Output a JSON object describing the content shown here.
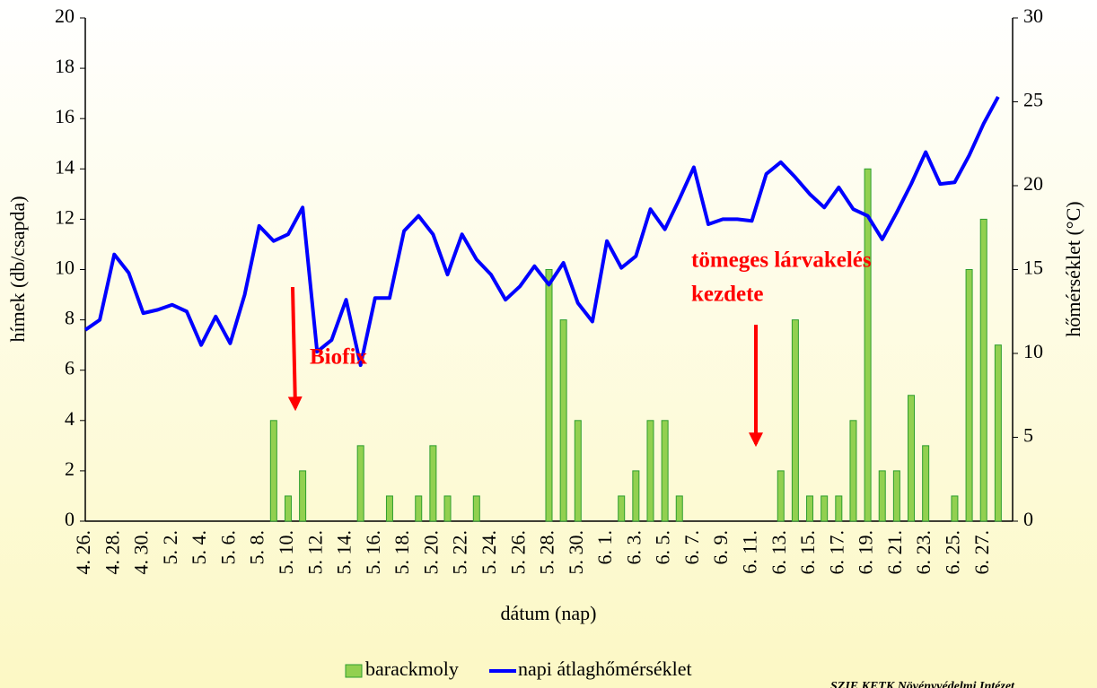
{
  "chart_data": {
    "type": "bar_line",
    "categories": [
      "4. 26.",
      null,
      "4. 28.",
      null,
      "4. 30.",
      null,
      "5. 2.",
      null,
      "5. 4.",
      null,
      "5. 6.",
      null,
      "5. 8.",
      null,
      "5. 10.",
      null,
      "5. 12.",
      null,
      "5. 14.",
      null,
      "5. 16.",
      null,
      "5. 18.",
      null,
      "5. 20.",
      null,
      "5. 22.",
      null,
      "5. 24.",
      null,
      "5. 26.",
      null,
      "5. 28.",
      null,
      "5. 30.",
      null,
      "6. 1.",
      null,
      "6. 3.",
      null,
      "6. 5.",
      null,
      "6. 7.",
      null,
      "6. 9.",
      null,
      "6. 11.",
      null,
      "6. 13.",
      null,
      "6. 15.",
      null,
      "6. 17.",
      null,
      "6. 19.",
      null,
      "6. 21.",
      null,
      "6. 23.",
      null,
      "6. 25.",
      null,
      "6. 27.",
      null
    ],
    "series": [
      {
        "name": "barackmoly",
        "type": "bar",
        "color": "#92d050",
        "values": [
          0,
          0,
          0,
          0,
          0,
          0,
          0,
          0,
          0,
          0,
          0,
          0,
          0,
          4,
          1,
          2,
          0,
          0,
          0,
          3,
          0,
          1,
          0,
          1,
          3,
          1,
          0,
          1,
          0,
          0,
          0,
          0,
          10,
          8,
          4,
          0,
          0,
          1,
          2,
          4,
          4,
          1,
          0,
          0,
          0,
          0,
          0,
          0,
          2,
          8,
          1,
          1,
          1,
          4,
          14,
          2,
          2,
          5,
          3,
          0,
          1,
          10,
          12,
          7
        ]
      },
      {
        "name": "napi átlaghőmérséklet",
        "type": "line",
        "axis": "y2",
        "color": "#0000ff",
        "values": [
          11.4,
          12.0,
          15.9,
          14.8,
          12.4,
          12.6,
          12.9,
          12.5,
          10.5,
          12.2,
          10.6,
          13.5,
          17.6,
          16.7,
          17.1,
          18.7,
          10.1,
          10.8,
          13.2,
          9.3,
          13.3,
          13.3,
          17.3,
          18.2,
          17.1,
          14.7,
          17.1,
          15.6,
          14.7,
          13.2,
          14.0,
          15.2,
          14.1,
          15.4,
          13.0,
          11.9,
          16.7,
          15.1,
          15.8,
          18.6,
          17.4,
          19.2,
          21.1,
          17.7,
          18.0,
          18.0,
          17.9,
          20.7,
          21.4,
          20.5,
          19.5,
          18.7,
          19.9,
          18.6,
          18.2,
          16.8,
          18.4,
          20.1,
          22.0,
          20.1,
          20.2,
          21.8,
          23.7,
          25.3
        ]
      }
    ],
    "ylabel": "hímek (db/csapda)",
    "y2label": "hőmérséklet (°C)",
    "xlabel": "dátum (nap)",
    "ylim": [
      0,
      20
    ],
    "yticks": [
      0,
      2,
      4,
      6,
      8,
      10,
      12,
      14,
      16,
      18,
      20
    ],
    "y2lim": [
      0,
      30
    ],
    "y2ticks": [
      0,
      5,
      10,
      15,
      20,
      25,
      30
    ],
    "grid": false,
    "legend": "bottom",
    "annotations": [
      "Biofix",
      "tömeges lárvakelés",
      "kezdete"
    ],
    "source": "SZIE KETK Növényvédelmi Intézet"
  }
}
